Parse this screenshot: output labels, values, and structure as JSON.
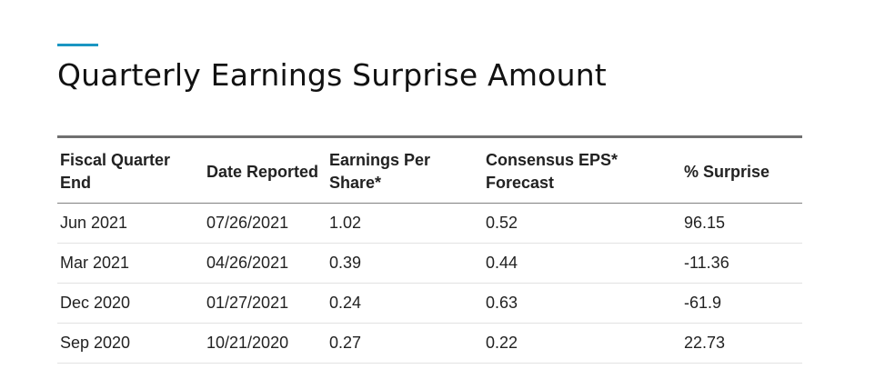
{
  "title": "Quarterly Earnings Surprise Amount",
  "colors": {
    "accent": "#1a96c2",
    "text": "#222222",
    "header_rule": "#707070",
    "row_rule": "#e2e2e2"
  },
  "table": {
    "headers": [
      "Fiscal Quarter End",
      "Date Reported",
      "Earnings Per Share*",
      "Consensus EPS* Forecast",
      "% Surprise"
    ],
    "rows": [
      [
        "Jun 2021",
        "07/26/2021",
        "1.02",
        "0.52",
        "96.15"
      ],
      [
        "Mar 2021",
        "04/26/2021",
        "0.39",
        "0.44",
        "-11.36"
      ],
      [
        "Dec 2020",
        "01/27/2021",
        "0.24",
        "0.63",
        "-61.9"
      ],
      [
        "Sep 2020",
        "10/21/2020",
        "0.27",
        "0.22",
        "22.73"
      ]
    ]
  }
}
